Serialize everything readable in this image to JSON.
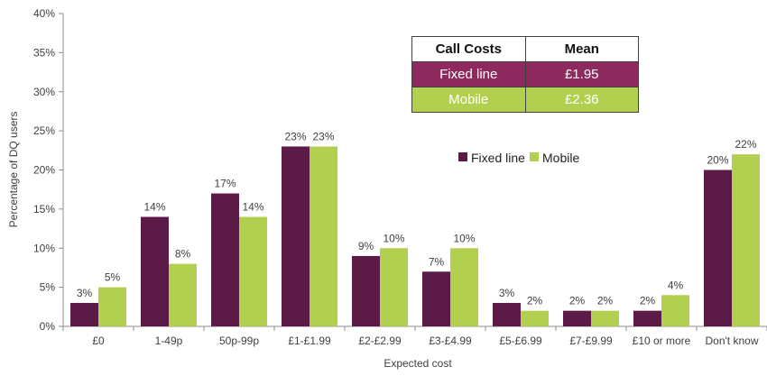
{
  "chart_data": {
    "type": "bar",
    "title": "",
    "xlabel": "Expected cost",
    "ylabel": "Percentage of DQ users",
    "ylim": [
      0,
      40
    ],
    "yticks": [
      "0%",
      "5%",
      "10%",
      "15%",
      "20%",
      "25%",
      "30%",
      "35%",
      "40%"
    ],
    "grid": false,
    "legend_position": "center-right",
    "categories": [
      "£0",
      "1-49p",
      "50p-99p",
      "£1-£1.99",
      "£2-£2.99",
      "£3-£4.99",
      "£5-£6.99",
      "£7-£9.99",
      "£10 or more",
      "Don't know"
    ],
    "series": [
      {
        "name": "Fixed line",
        "color": "#5c1a47",
        "values": [
          3,
          14,
          17,
          23,
          9,
          7,
          3,
          2,
          2,
          20
        ],
        "labels": [
          "3%",
          "14%",
          "17%",
          "23%",
          "9%",
          "7%",
          "3%",
          "2%",
          "2%",
          "20%"
        ]
      },
      {
        "name": "Mobile",
        "color": "#b3cf4f",
        "values": [
          5,
          8,
          14,
          23,
          10,
          10,
          2,
          2,
          4,
          22
        ],
        "labels": [
          "5%",
          "8%",
          "14%",
          "23%",
          "10%",
          "10%",
          "2%",
          "2%",
          "4%",
          "22%"
        ]
      }
    ]
  },
  "table": {
    "headers": [
      "Call Costs",
      "Mean"
    ],
    "rows": [
      {
        "label": "Fixed line",
        "value": "£1.95"
      },
      {
        "label": "Mobile",
        "value": "£2.36"
      }
    ]
  }
}
